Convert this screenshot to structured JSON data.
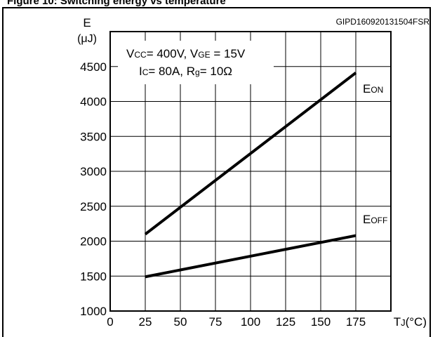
{
  "header": {
    "title_partial": "Figure 10: Switching energy vs temperature",
    "code": "GIPD160920131504FSR"
  },
  "chart_data": {
    "type": "line",
    "ylabel": "E",
    "yunit": "(μJ)",
    "xlabel": "TJ(°C)",
    "x_ticks": [
      0,
      25,
      50,
      75,
      100,
      125,
      150,
      175
    ],
    "y_ticks": [
      1000,
      1500,
      2000,
      2500,
      3000,
      3500,
      4000,
      4500
    ],
    "xlim": [
      0,
      200
    ],
    "ylim": [
      1000,
      5000
    ],
    "grid": true,
    "conditions": {
      "line1": "VCC= 400V, VGE = 15V",
      "line2": "IC= 80A, Rg= 10Ω"
    },
    "series": [
      {
        "name": "EON",
        "x": [
          25,
          175
        ],
        "y": [
          2100,
          4410
        ]
      },
      {
        "name": "EOFF",
        "x": [
          25,
          175
        ],
        "y": [
          1490,
          2080
        ]
      }
    ]
  }
}
